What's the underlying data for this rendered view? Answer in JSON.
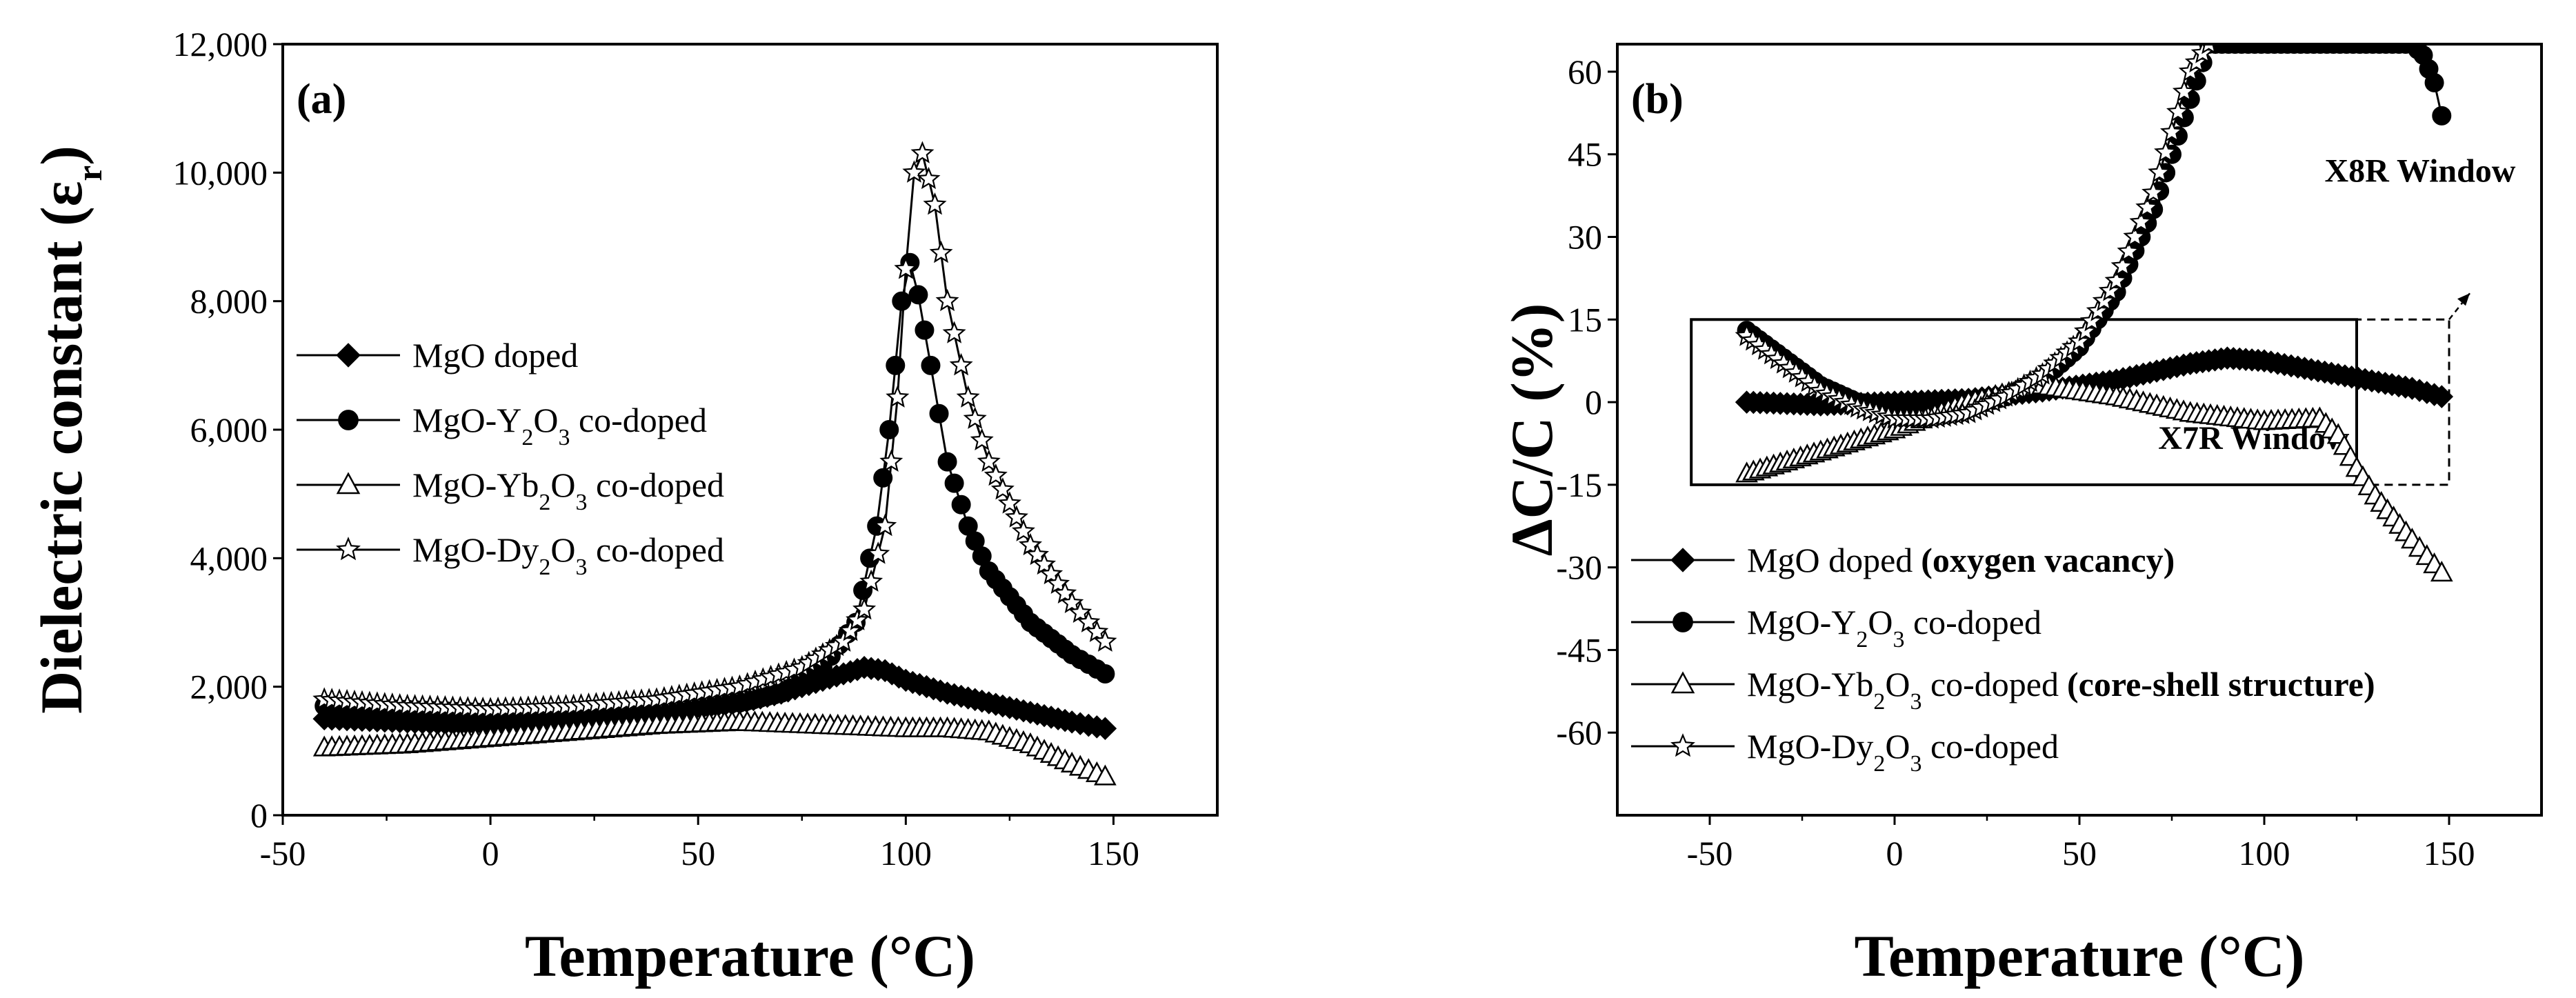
{
  "chart_data": [
    {
      "type": "line",
      "panel_label": "(a)",
      "xlabel": "Temperature (°C)",
      "ylabel": "Dielectric constant (εr)",
      "xlim": [
        -50,
        175
      ],
      "ylim": [
        0,
        12000
      ],
      "x_ticks": [
        -50,
        0,
        50,
        100,
        150
      ],
      "x_tick_labels": [
        "-50",
        "0",
        "50",
        "100",
        "150"
      ],
      "y_ticks": [
        0,
        2000,
        4000,
        6000,
        8000,
        10000,
        12000
      ],
      "y_tick_labels": [
        "0",
        "2,000",
        "4,000",
        "6,000",
        "8,000",
        "10,000",
        "12,000"
      ],
      "legend_position": "center-left",
      "series": [
        {
          "name": "MgO doped",
          "marker": "diamond-filled",
          "x": [
            -40,
            -20,
            0,
            20,
            40,
            60,
            70,
            80,
            85,
            90,
            95,
            100,
            110,
            120,
            130,
            140,
            148
          ],
          "y": [
            1500,
            1450,
            1400,
            1450,
            1550,
            1750,
            1900,
            2100,
            2200,
            2300,
            2250,
            2100,
            1900,
            1750,
            1600,
            1450,
            1350
          ]
        },
        {
          "name": "MgO-Y₂O₃ co-doped",
          "marker": "circle-filled",
          "x": [
            -40,
            -20,
            0,
            20,
            40,
            60,
            70,
            80,
            88,
            93,
            96,
            99,
            101,
            103,
            106,
            110,
            115,
            120,
            130,
            140,
            148
          ],
          "y": [
            1700,
            1650,
            1600,
            1600,
            1650,
            1750,
            1900,
            2300,
            3000,
            4500,
            6000,
            8000,
            8600,
            8100,
            7000,
            5500,
            4500,
            3800,
            3000,
            2500,
            2200
          ]
        },
        {
          "name": "MgO-Yb₂O₃ co-doped",
          "marker": "triangle-open",
          "x": [
            -40,
            -20,
            0,
            20,
            40,
            60,
            80,
            100,
            110,
            120,
            130,
            140,
            148
          ],
          "y": [
            1050,
            1100,
            1200,
            1300,
            1400,
            1450,
            1400,
            1350,
            1350,
            1300,
            1100,
            800,
            600
          ]
        },
        {
          "name": "MgO-Dy₂O₃ co-doped",
          "marker": "star-open",
          "x": [
            -40,
            -20,
            0,
            20,
            40,
            60,
            75,
            85,
            90,
            95,
            98,
            100,
            102,
            104,
            107,
            110,
            115,
            120,
            130,
            140,
            148
          ],
          "y": [
            1800,
            1700,
            1650,
            1700,
            1800,
            2000,
            2300,
            2700,
            3200,
            4500,
            6500,
            8500,
            10000,
            10300,
            9500,
            8000,
            6500,
            5500,
            4200,
            3300,
            2700
          ]
        }
      ]
    },
    {
      "type": "line",
      "panel_label": "(b)",
      "xlabel": "Temperature (°C)",
      "ylabel": "ΔC/C (%)",
      "xlim": [
        -75,
        175
      ],
      "ylim": [
        -75,
        65
      ],
      "x_ticks": [
        -50,
        0,
        50,
        100,
        150
      ],
      "x_tick_labels": [
        "-50",
        "0",
        "50",
        "100",
        "150"
      ],
      "y_ticks": [
        -60,
        -45,
        -30,
        -15,
        0,
        15,
        30,
        45,
        60
      ],
      "y_tick_labels": [
        "-60",
        "-45",
        "-30",
        "-15",
        "0",
        "15",
        "30",
        "45",
        "60"
      ],
      "legend_position": "bottom-left",
      "annotations": [
        "X8R Window",
        "X7R Window"
      ],
      "windows": [
        {
          "name": "X7R Window",
          "x_range": [
            -55,
            125
          ],
          "y_range": [
            -15,
            15
          ]
        },
        {
          "name": "X8R Window",
          "x_range": [
            -55,
            150
          ],
          "y_range": [
            -15,
            15
          ]
        }
      ],
      "series": [
        {
          "name": "MgO doped",
          "name_suffix": "(oxygen vacancy)",
          "marker": "diamond-filled",
          "x": [
            -40,
            -20,
            0,
            20,
            40,
            60,
            80,
            90,
            100,
            120,
            140,
            148
          ],
          "y": [
            0,
            -0.5,
            0,
            0.5,
            2,
            4,
            7,
            8,
            7.5,
            5,
            2.5,
            1
          ]
        },
        {
          "name": "MgO-Y₂O₃ co-doped",
          "marker": "circle-filled",
          "x": [
            -40,
            -30,
            -20,
            -10,
            0,
            10,
            20,
            30,
            40,
            50,
            60,
            70,
            80,
            85,
            140,
            143,
            146,
            148
          ],
          "y": [
            13,
            8,
            3,
            0,
            -1,
            -2,
            -1,
            1,
            4,
            10,
            20,
            35,
            55,
            65,
            65,
            63,
            58,
            52
          ]
        },
        {
          "name": "MgO-Yb₂O₃ co-doped",
          "name_suffix": "(core-shell structure)",
          "marker": "triangle-open",
          "x": [
            -40,
            -20,
            0,
            20,
            40,
            60,
            80,
            100,
            115,
            120,
            125,
            130,
            140,
            148
          ],
          "y": [
            -13,
            -9,
            -5,
            0,
            3,
            1,
            -2,
            -3.5,
            -3,
            -6,
            -12,
            -17,
            -25,
            -31
          ]
        },
        {
          "name": "MgO-Dy₂O₃ co-doped",
          "marker": "star-open",
          "x": [
            -40,
            -30,
            -20,
            -10,
            0,
            10,
            20,
            30,
            40,
            50,
            60,
            70,
            80,
            85
          ],
          "y": [
            12,
            7,
            2,
            -1,
            -3,
            -3,
            -2,
            1,
            5,
            11,
            22,
            38,
            60,
            65
          ]
        }
      ]
    }
  ]
}
